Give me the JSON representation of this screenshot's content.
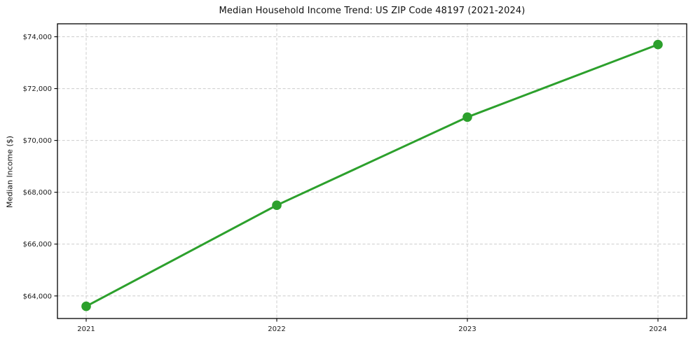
{
  "figure": {
    "background": "#ffffff"
  },
  "chart_data": {
    "type": "line",
    "title": "Median Household Income Trend: US ZIP Code 48197 (2021-2024)",
    "xlabel": "",
    "ylabel": "Median Income ($)",
    "x": [
      2021,
      2022,
      2023,
      2024
    ],
    "x_tick_labels": [
      "2021",
      "2022",
      "2023",
      "2024"
    ],
    "series": [
      {
        "name": "Median Household Income",
        "values": [
          63600,
          67500,
          70900,
          73700
        ],
        "color": "#2ca02c",
        "marker": "circle"
      }
    ],
    "y_ticks": [
      64000,
      66000,
      68000,
      70000,
      72000,
      74000
    ],
    "y_tick_labels": [
      "$64,000",
      "$66,000",
      "$68,000",
      "$70,000",
      "$72,000",
      "$74,000"
    ],
    "ylim": [
      63130,
      74500
    ],
    "grid": "both-dashed",
    "grid_color": "#cccccc",
    "spine_color": "#000000",
    "legend": "none"
  }
}
